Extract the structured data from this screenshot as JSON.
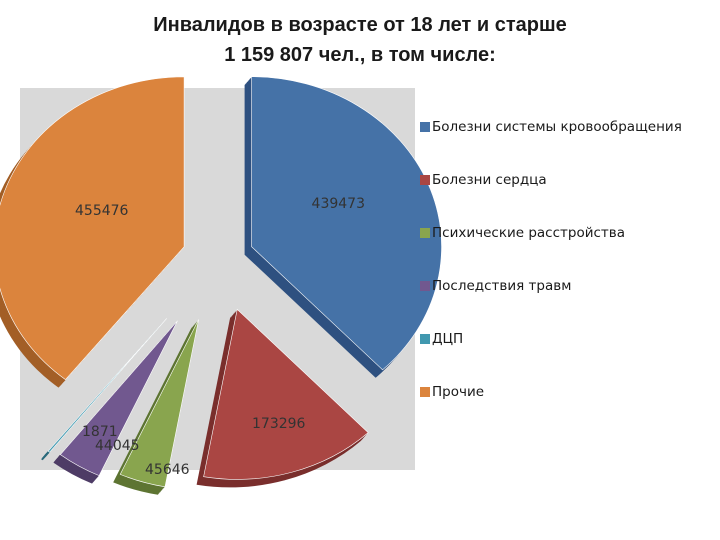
{
  "title": {
    "line1": "Инвалидов в возрасте от 18 лет и старше",
    "line2": "1 159 807 чел., в том числе:"
  },
  "chart_data": {
    "type": "pie",
    "style": "3d-exploded",
    "total": "1 159 807",
    "slices": [
      {
        "name": "Болезни системы кровообращения",
        "value": 439473,
        "label": "439473",
        "color": "#4572a7",
        "side": "#2f5180"
      },
      {
        "name": "Болезни сердца",
        "value": 173296,
        "label": "173296",
        "color": "#aa4643",
        "side": "#7a2f2d"
      },
      {
        "name": "Психические расстройства",
        "value": 45646,
        "label": "45646",
        "color": "#89a54e",
        "side": "#5e7533"
      },
      {
        "name": "Последствия травм",
        "value": 44045,
        "label": "44045",
        "color": "#71588f",
        "side": "#4e3c66"
      },
      {
        "name": "ДЦП",
        "value": 1871,
        "label": "1871",
        "color": "#4198af",
        "side": "#2b6b7c"
      },
      {
        "name": "Прочие",
        "value": 455476,
        "label": "455476",
        "color": "#db843d",
        "side": "#a35f27"
      }
    ],
    "legend": {
      "position": "right"
    }
  }
}
